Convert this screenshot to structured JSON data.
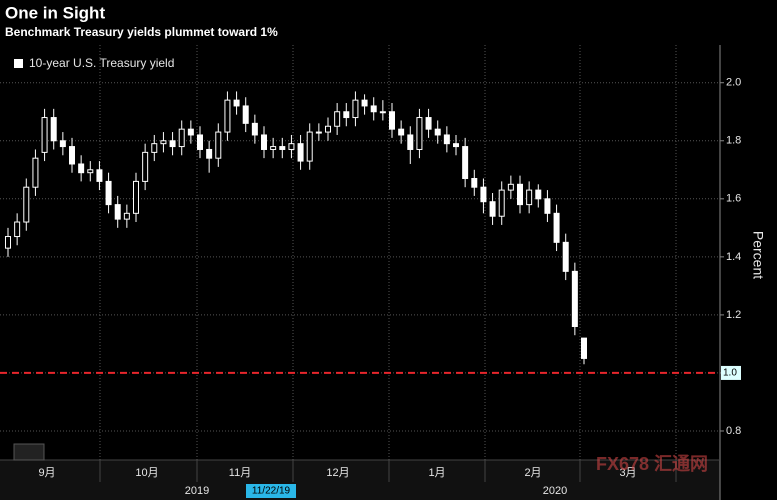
{
  "chart_data": {
    "type": "candlestick",
    "title": "One in Sight",
    "subtitle": "Benchmark Treasury yields plummet toward 1%",
    "legend": "10-year U.S. Treasury yield",
    "y_label": "Percent",
    "months": [
      "9月",
      "10月",
      "11月",
      "12月",
      "1月",
      "2月",
      "3月"
    ],
    "years": [
      "2019",
      "2020"
    ],
    "date_marker": "11/22/19",
    "watermark": "FX678 汇通网",
    "color": "#ffffff",
    "ylim": [
      0.7,
      2.13
    ],
    "yticks": [
      0.8,
      {
        "value": 1.0,
        "label": "1.0"
      },
      1.2,
      1.4,
      1.6,
      1.8,
      {
        "value": 2.0,
        "label": "2.0"
      }
    ],
    "grid": true,
    "reference_line": {
      "value": 1,
      "label": "1.0",
      "color": "#e8262c"
    },
    "open": [
      1.43,
      1.47,
      1.52,
      1.64,
      1.76,
      1.88,
      1.8,
      1.78,
      1.72,
      1.69,
      1.7,
      1.66,
      1.58,
      1.53,
      1.55,
      1.66,
      1.76,
      1.79,
      1.8,
      1.78,
      1.84,
      1.82,
      1.77,
      1.74,
      1.83,
      1.94,
      1.92,
      1.86,
      1.82,
      1.77,
      1.78,
      1.77,
      1.79,
      1.73,
      1.83,
      1.83,
      1.85,
      1.9,
      1.88,
      1.94,
      1.92,
      1.9,
      1.9,
      1.84,
      1.82,
      1.77,
      1.88,
      1.84,
      1.82,
      1.79,
      1.78,
      1.67,
      1.64,
      1.59,
      1.54,
      1.63,
      1.65,
      1.58,
      1.63,
      1.6,
      1.55,
      1.45,
      1.35,
      1.12
    ],
    "high": [
      1.5,
      1.55,
      1.67,
      1.77,
      1.91,
      1.91,
      1.83,
      1.81,
      1.75,
      1.73,
      1.73,
      1.69,
      1.61,
      1.58,
      1.69,
      1.79,
      1.82,
      1.83,
      1.83,
      1.87,
      1.87,
      1.85,
      1.8,
      1.86,
      1.97,
      1.97,
      1.95,
      1.89,
      1.85,
      1.81,
      1.81,
      1.82,
      1.82,
      1.86,
      1.86,
      1.88,
      1.93,
      1.93,
      1.97,
      1.96,
      1.95,
      1.94,
      1.93,
      1.87,
      1.85,
      1.91,
      1.91,
      1.87,
      1.85,
      1.82,
      1.81,
      1.7,
      1.67,
      1.62,
      1.66,
      1.68,
      1.68,
      1.66,
      1.65,
      1.63,
      1.58,
      1.48,
      1.38,
      1.12
    ],
    "low": [
      1.4,
      1.44,
      1.49,
      1.61,
      1.73,
      1.77,
      1.75,
      1.69,
      1.66,
      1.66,
      1.63,
      1.55,
      1.5,
      1.5,
      1.52,
      1.63,
      1.73,
      1.76,
      1.75,
      1.75,
      1.79,
      1.74,
      1.69,
      1.71,
      1.8,
      1.89,
      1.83,
      1.79,
      1.74,
      1.74,
      1.74,
      1.74,
      1.7,
      1.7,
      1.8,
      1.8,
      1.82,
      1.85,
      1.85,
      1.89,
      1.87,
      1.87,
      1.81,
      1.79,
      1.72,
      1.74,
      1.81,
      1.79,
      1.76,
      1.75,
      1.64,
      1.61,
      1.55,
      1.51,
      1.51,
      1.6,
      1.55,
      1.55,
      1.57,
      1.52,
      1.42,
      1.32,
      1.13,
      1.03
    ],
    "close": [
      1.47,
      1.52,
      1.64,
      1.74,
      1.88,
      1.8,
      1.78,
      1.72,
      1.69,
      1.7,
      1.66,
      1.58,
      1.53,
      1.55,
      1.66,
      1.76,
      1.79,
      1.8,
      1.78,
      1.84,
      1.82,
      1.77,
      1.74,
      1.83,
      1.94,
      1.92,
      1.86,
      1.82,
      1.77,
      1.78,
      1.77,
      1.79,
      1.73,
      1.83,
      1.83,
      1.85,
      1.9,
      1.88,
      1.94,
      1.92,
      1.9,
      1.9,
      1.84,
      1.82,
      1.77,
      1.88,
      1.84,
      1.82,
      1.79,
      1.78,
      1.67,
      1.64,
      1.59,
      1.54,
      1.63,
      1.65,
      1.58,
      1.63,
      1.6,
      1.55,
      1.45,
      1.35,
      1.16,
      1.05
    ]
  }
}
